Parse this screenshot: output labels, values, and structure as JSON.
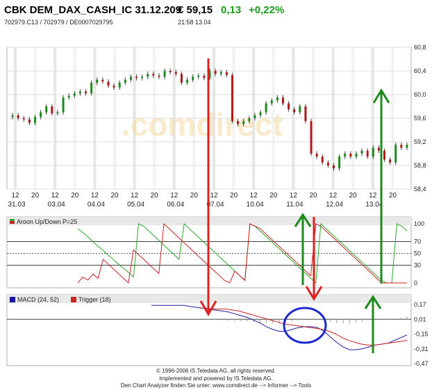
{
  "header": {
    "title": "CBK DEM_DAX_CASH_IC 31.12.209",
    "price": "€ 59,15",
    "change": "0,13",
    "change_pct": "+0,22%",
    "ids": "702979.C13  /  702979  /  DE0007029795",
    "time": "21:58   13.04",
    "colors": {
      "up": "#1a9a1a"
    }
  },
  "watermark": ".comdirect",
  "footer": {
    "line1": "© 1996-2006 IS.Teledata AG, all rights reserved.",
    "line2": "Implemented and powered by IS.Teledata AG.",
    "line3": "Den Chart Analyzer finden Sie unter: www.comdirect.de --> Informer --> Tools"
  },
  "chart_data": [
    {
      "type": "candlestick",
      "title": "CBK DEM_DAX_CASH_IC 31.12.209",
      "ylim": [
        58.4,
        60.8
      ],
      "yticks": [
        "60,8",
        "60,4",
        "60,0",
        "59,6",
        "59,2",
        "58,8",
        "58,4"
      ],
      "hour_ticks": [
        "12",
        "20",
        "12",
        "20",
        "12",
        "20",
        "12",
        "20",
        "12",
        "20",
        "12",
        "20",
        "12",
        "20",
        "12",
        "20",
        "12",
        "20",
        "12",
        "20"
      ],
      "date_ticks": [
        "31.03",
        "03.04",
        "04.04",
        "05.04",
        "06.04",
        "07.04",
        "10.04",
        "11.04",
        "12.04",
        "13.04"
      ],
      "grid": true,
      "close_series": [
        59.65,
        59.6,
        59.58,
        59.52,
        59.62,
        59.7,
        59.8,
        59.68,
        59.7,
        59.95,
        59.98,
        60.02,
        60.05,
        60.02,
        60.2,
        60.25,
        60.22,
        60.15,
        60.12,
        60.2,
        60.25,
        60.3,
        60.28,
        60.3,
        60.35,
        60.32,
        60.3,
        60.4,
        60.38,
        60.35,
        60.2,
        60.25,
        60.3,
        60.32,
        60.28,
        60.4,
        60.35,
        60.38,
        60.33,
        59.55,
        59.5,
        59.55,
        59.6,
        59.65,
        59.7,
        59.85,
        59.9,
        59.95,
        59.85,
        59.75,
        59.7,
        59.8,
        59.55,
        59.0,
        58.95,
        58.85,
        58.8,
        58.75,
        58.95,
        59.0,
        58.95,
        59.0,
        59.05,
        58.95,
        59.1,
        59.05,
        58.9,
        58.85,
        59.15,
        59.1,
        59.15
      ]
    },
    {
      "type": "line",
      "title": "Aroon Up/Down P=25",
      "ylim": [
        0,
        100
      ],
      "yticks": [
        "100",
        "70",
        "50",
        "30",
        "0"
      ],
      "series": [
        {
          "name": "Aroon Up",
          "color": "#2aa82a",
          "values": [
            92,
            85,
            78,
            70,
            62,
            55,
            47,
            40,
            32,
            25,
            18,
            10,
            100,
            96,
            88,
            80,
            72,
            64,
            56,
            48,
            40,
            100,
            92,
            84,
            76,
            68,
            60,
            52,
            44,
            36,
            28,
            20,
            12,
            5,
            100,
            96,
            88,
            80,
            72,
            64,
            56,
            48,
            40,
            32,
            24,
            16,
            8,
            0,
            100,
            92,
            84,
            76,
            68,
            60,
            52,
            44,
            36,
            28,
            20,
            12,
            4,
            0,
            0,
            100,
            96,
            88
          ]
        },
        {
          "name": "Aroon Down",
          "color": "#cc2222",
          "values": [
            0,
            10,
            5,
            15,
            8,
            40,
            32,
            24,
            16,
            8,
            0,
            56,
            48,
            40,
            32,
            24,
            16,
            100,
            92,
            84,
            76,
            68,
            60,
            52,
            44,
            36,
            28,
            20,
            12,
            4,
            0,
            20,
            12,
            4,
            100,
            96,
            92,
            84,
            76,
            68,
            60,
            52,
            44,
            36,
            28,
            20,
            12,
            100,
            96,
            88,
            80,
            72,
            64,
            56,
            48,
            40,
            32,
            24,
            16,
            8,
            0,
            0,
            0,
            0,
            0,
            0
          ]
        }
      ]
    },
    {
      "type": "line",
      "title": "MACD (24, 52) / Trigger (18)",
      "ylim": [
        -0.47,
        0.17
      ],
      "yticks": [
        "0,17",
        "0,01",
        "-0,15",
        "-0,31",
        "-0,47"
      ],
      "series": [
        {
          "name": "MACD (24, 52)",
          "color": "#1a1aa0",
          "values": [
            0.16,
            0.16,
            0.16,
            0.16,
            0.16,
            0.16,
            0.15,
            0.14,
            0.13,
            0.12,
            0.11,
            0.1,
            0.09,
            0.07,
            0.05,
            0.03,
            0.0,
            -0.03,
            -0.07,
            -0.1,
            -0.12,
            -0.12,
            -0.1,
            -0.08,
            -0.07,
            -0.07,
            -0.08,
            -0.12,
            -0.18,
            -0.24,
            -0.29,
            -0.32,
            -0.32,
            -0.31,
            -0.29,
            -0.27,
            -0.26,
            -0.25,
            -0.22,
            -0.19,
            -0.16
          ]
        },
        {
          "name": "Trigger (18)",
          "color": "#cc2222",
          "values": [
            0.13,
            0.13,
            0.12,
            0.12,
            0.12,
            0.11,
            0.1,
            0.08,
            0.06,
            0.04,
            0.02,
            0.0,
            -0.02,
            -0.04,
            -0.05,
            -0.06,
            -0.07,
            -0.08,
            -0.09,
            -0.1,
            -0.12,
            -0.15,
            -0.19,
            -0.22,
            -0.24,
            -0.26,
            -0.27,
            -0.27,
            -0.26,
            -0.25,
            -0.24,
            -0.23,
            -0.22
          ]
        }
      ]
    }
  ]
}
